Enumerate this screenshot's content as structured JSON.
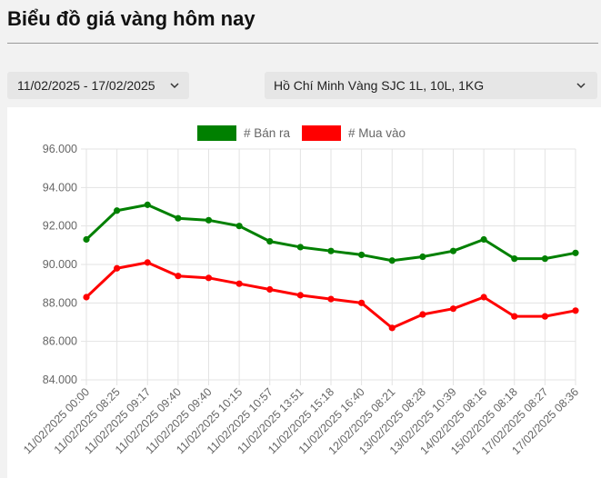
{
  "page": {
    "title": "Biểu đồ giá vàng hôm nay"
  },
  "filters": {
    "date_range": "11/02/2025 - 17/02/2025",
    "product": "Hồ Chí Minh Vàng SJC 1L, 10L, 1KG",
    "chevron_icon": "chevron-down-icon"
  },
  "chart_data": {
    "type": "line",
    "categories": [
      "11/02/2025 00:00",
      "11/02/2025 08:25",
      "11/02/2025 09:17",
      "11/02/2025 09:40",
      "11/02/2025 09:40",
      "11/02/2025 10:15",
      "11/02/2025 10:57",
      "11/02/2025 13:51",
      "11/02/2025 15:18",
      "11/02/2025 16:40",
      "12/02/2025 08:21",
      "13/02/2025 08:28",
      "13/02/2025 10:39",
      "14/02/2025 08:16",
      "15/02/2025 08:18",
      "17/02/2025 08:27",
      "17/02/2025 08:36"
    ],
    "series": [
      {
        "name": "# Bán ra",
        "color": "#008000",
        "values": [
          91.3,
          92.8,
          93.1,
          92.4,
          92.3,
          92.0,
          91.2,
          90.9,
          90.7,
          90.5,
          90.2,
          90.4,
          90.7,
          91.3,
          90.3,
          90.3,
          90.6
        ]
      },
      {
        "name": "# Mua vào",
        "color": "#ff0000",
        "values": [
          88.3,
          89.8,
          90.1,
          89.4,
          89.3,
          89.0,
          88.7,
          88.4,
          88.2,
          88.0,
          86.7,
          87.4,
          87.7,
          88.3,
          87.3,
          87.3,
          87.6
        ]
      }
    ],
    "ylim": [
      84,
      96
    ],
    "yticks": [
      "84.000",
      "86.000",
      "88.000",
      "90.000",
      "92.000",
      "94.000",
      "96.000"
    ],
    "grid": true,
    "legend": "top-center"
  }
}
